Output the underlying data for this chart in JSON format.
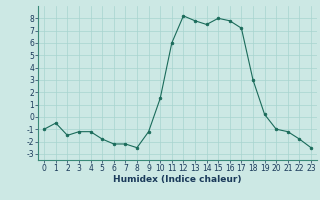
{
  "x": [
    0,
    1,
    2,
    3,
    4,
    5,
    6,
    7,
    8,
    9,
    10,
    11,
    12,
    13,
    14,
    15,
    16,
    17,
    18,
    19,
    20,
    21,
    22,
    23
  ],
  "y": [
    -1.0,
    -0.5,
    -1.5,
    -1.2,
    -1.2,
    -1.8,
    -2.2,
    -2.2,
    -2.5,
    -1.2,
    1.5,
    6.0,
    8.2,
    7.8,
    7.5,
    8.0,
    7.8,
    7.2,
    3.0,
    0.2,
    -1.0,
    -1.2,
    -1.8,
    -2.5
  ],
  "line_color": "#1a6b5a",
  "marker_color": "#1a6b5a",
  "bg_color": "#cce8e4",
  "grid_color": "#a8d4cf",
  "xlabel": "Humidex (Indice chaleur)",
  "ylim": [
    -3.5,
    9.0
  ],
  "xlim": [
    -0.5,
    23.5
  ],
  "yticks": [
    -3,
    -2,
    -1,
    0,
    1,
    2,
    3,
    4,
    5,
    6,
    7,
    8
  ],
  "xticks": [
    0,
    1,
    2,
    3,
    4,
    5,
    6,
    7,
    8,
    9,
    10,
    11,
    12,
    13,
    14,
    15,
    16,
    17,
    18,
    19,
    20,
    21,
    22,
    23
  ],
  "tick_fontsize": 5.5,
  "label_fontsize": 6.5
}
